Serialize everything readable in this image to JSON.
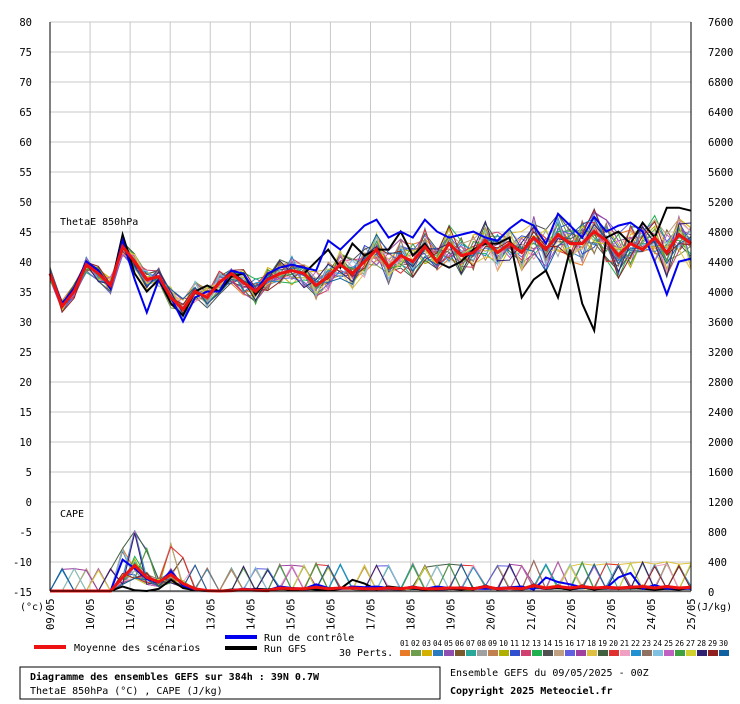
{
  "chart_data": {
    "type": "line",
    "panels": [
      {
        "label": "ThetaE 850hPa",
        "variable": "ThetaE 850hPa",
        "unit": "°C"
      },
      {
        "label": "CAPE",
        "variable": "CAPE",
        "unit": "J/kg"
      }
    ],
    "x_unit": "(°c)",
    "y2_unit": "(J/kg)",
    "left_ticks": [
      "80",
      "75",
      "70",
      "65",
      "60",
      "55",
      "50",
      "45",
      "40",
      "35",
      "30",
      "25",
      "20",
      "15",
      "10",
      "5",
      "0",
      "-5",
      "-10",
      "-15"
    ],
    "right_ticks": [
      "7600",
      "7200",
      "6800",
      "6400",
      "6000",
      "5600",
      "5200",
      "4800",
      "4400",
      "4000",
      "3600",
      "3200",
      "2800",
      "2400",
      "2000",
      "1600",
      "1200",
      "800",
      "400",
      "0"
    ],
    "x_dates": [
      "09/05",
      "10/05",
      "11/05",
      "12/05",
      "13/05",
      "14/05",
      "15/05",
      "16/05",
      "17/05",
      "18/05",
      "19/05",
      "20/05",
      "21/05",
      "22/05",
      "23/05",
      "24/05",
      "25/05"
    ],
    "ylim_left": [
      -15,
      80
    ],
    "ylim_right": [
      0,
      7600
    ],
    "grid": true,
    "series": [
      {
        "name": "Moyenne des scénarios",
        "color": "#ee1111",
        "theta": [
          38,
          32.5,
          35,
          39.5,
          38,
          36,
          42.5,
          40,
          37,
          37.5,
          34,
          32,
          35,
          34,
          36.5,
          38,
          36.5,
          35,
          37,
          38,
          38.5,
          38,
          36,
          37.5,
          39.5,
          38,
          40,
          42,
          39,
          41,
          40,
          42.5,
          40,
          43,
          41,
          41.5,
          43.5,
          41.5,
          43,
          41.5,
          44,
          42,
          44.5,
          43,
          43,
          45,
          43.5,
          41,
          43,
          42,
          44,
          41.5,
          44.5,
          43
        ],
        "cape": [
          0,
          0,
          0,
          0,
          0,
          0,
          180,
          340,
          180,
          120,
          220,
          100,
          30,
          5,
          0,
          5,
          20,
          10,
          5,
          40,
          30,
          30,
          50,
          30,
          40,
          40,
          30,
          30,
          40,
          30,
          50,
          30,
          30,
          40,
          40,
          30,
          60,
          30,
          40,
          30,
          70,
          40,
          60,
          40,
          60,
          40,
          50,
          40,
          50,
          60,
          40,
          60,
          40,
          50
        ]
      },
      {
        "name": "Run de contrôle",
        "color": "#0000ee",
        "theta": [
          38,
          33,
          35.5,
          40,
          38.5,
          35.5,
          43.5,
          37,
          31.5,
          37,
          34,
          30,
          34,
          35,
          35,
          38.5,
          38,
          35,
          38,
          39,
          39.5,
          39,
          38.5,
          43.5,
          42,
          44,
          46,
          47,
          44,
          45,
          44,
          47,
          45,
          44,
          44.5,
          45,
          44,
          43.5,
          45.5,
          47,
          46,
          43,
          48,
          46,
          44,
          47.5,
          45,
          46,
          46.5,
          45,
          40,
          34.5,
          40,
          40.5
        ],
        "cape": [
          0,
          0,
          0,
          0,
          0,
          0,
          420,
          300,
          160,
          110,
          260,
          70,
          20,
          0,
          0,
          10,
          30,
          20,
          10,
          60,
          40,
          30,
          90,
          40,
          30,
          60,
          50,
          60,
          40,
          30,
          60,
          30,
          60,
          40,
          50,
          30,
          30,
          40,
          50,
          60,
          20,
          180,
          120,
          90,
          50,
          40,
          40,
          180,
          240,
          30,
          80,
          30,
          40,
          30
        ]
      },
      {
        "name": "Run GFS",
        "color": "#000000",
        "theta": [
          38,
          33,
          35.5,
          40,
          38.5,
          35.5,
          44.5,
          38,
          35,
          37,
          33,
          31,
          35,
          36,
          35,
          37.5,
          38,
          34.5,
          37,
          38,
          38.5,
          38,
          40,
          42,
          39,
          43,
          41,
          42,
          42,
          45,
          41,
          43,
          40,
          39,
          40,
          42,
          43,
          43,
          44,
          34,
          37,
          38.5,
          34,
          42,
          33,
          28.5,
          44,
          45,
          43,
          46.5,
          44,
          49,
          49,
          48.5
        ],
        "cape": [
          0,
          0,
          0,
          0,
          0,
          0,
          60,
          10,
          0,
          30,
          150,
          40,
          10,
          0,
          0,
          20,
          10,
          30,
          20,
          40,
          10,
          30,
          20,
          10,
          30,
          150,
          100,
          20,
          60,
          40,
          30,
          20,
          40,
          30,
          20,
          40,
          30,
          30,
          40,
          30,
          60,
          30,
          40,
          20,
          50,
          20,
          40,
          30,
          40,
          30,
          20,
          30,
          20,
          40
        ]
      }
    ],
    "members": [
      "01",
      "02",
      "03",
      "04",
      "05",
      "06",
      "07",
      "08",
      "09",
      "10",
      "11",
      "12",
      "13",
      "14",
      "15",
      "16",
      "17",
      "18",
      "19",
      "20",
      "21",
      "22",
      "23",
      "24",
      "25",
      "26",
      "27",
      "28",
      "29",
      "30"
    ],
    "member_colors": [
      "#e87a28",
      "#6e9e4c",
      "#d4b000",
      "#2a7ac0",
      "#8f4fb0",
      "#7a5a2a",
      "#2ba79a",
      "#a0a0a0",
      "#c08050",
      "#b0b000",
      "#3050d0",
      "#d04070",
      "#20b050",
      "#505050",
      "#c0a080",
      "#6060e0",
      "#a040a0",
      "#e0c040",
      "#406040",
      "#e03030",
      "#f0a0c0",
      "#2090d0",
      "#907060",
      "#80c0e0",
      "#c060c0",
      "#40a040",
      "#d0d030",
      "#302070",
      "#902020",
      "#1060a0"
    ]
  },
  "legend": {
    "mean": "Moyenne des scénarios",
    "control": "Run de contrôle",
    "gfs": "Run GFS",
    "perts": "30 Perts."
  },
  "footer": {
    "title": "Diagramme des ensembles GEFS sur 384h : 39N 0.7W",
    "subtitle": "ThetaE 850hPa (°C) , CAPE (J/kg)",
    "ensemble": "Ensemble GEFS du 09/05/2025 - 00Z",
    "copyright": "Copyright 2025 Meteociel.fr"
  }
}
